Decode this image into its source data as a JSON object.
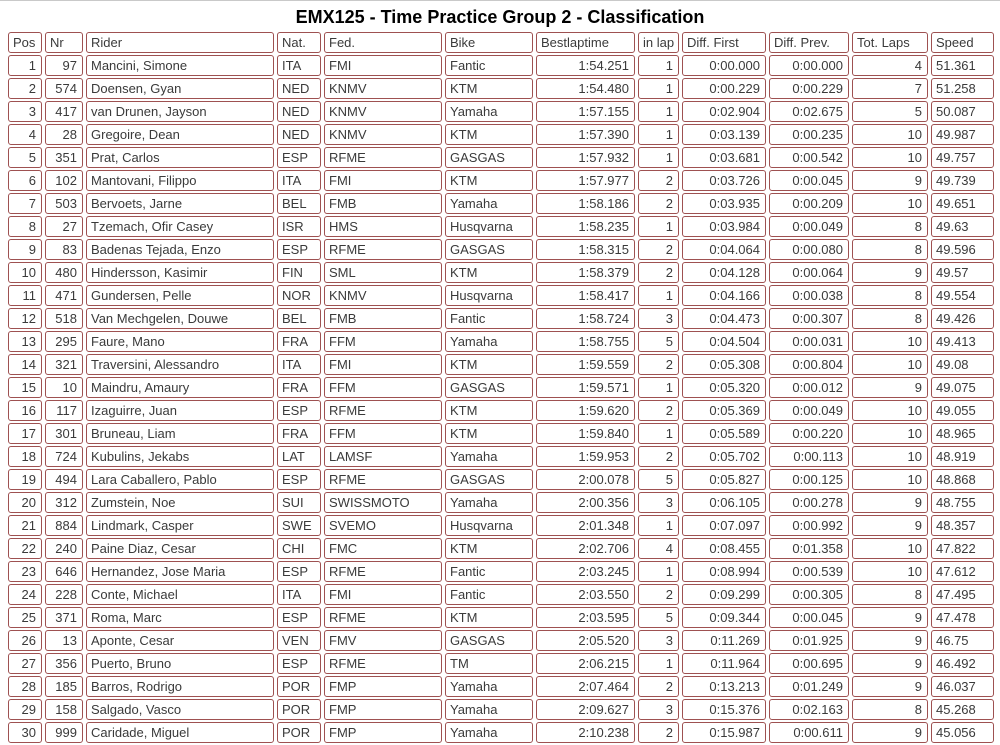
{
  "title": "EMX125 - Time Practice Group 2 - Classification",
  "colors": {
    "cell_border": "#9e5151",
    "text": "#3a3a3a",
    "title_text": "#000000",
    "background": "#ffffff"
  },
  "table": {
    "columns": [
      "Pos",
      "Nr",
      "Rider",
      "Nat.",
      "Fed.",
      "Bike",
      "Bestlaptime",
      "in lap",
      "Diff. First",
      "Diff. Prev.",
      "Tot. Laps",
      "Speed"
    ],
    "rows": [
      [
        "1",
        "97",
        "Mancini, Simone",
        "ITA",
        "FMI",
        "Fantic",
        "1:54.251",
        "1",
        "0:00.000",
        "0:00.000",
        "4",
        "51.361"
      ],
      [
        "2",
        "574",
        "Doensen, Gyan",
        "NED",
        "KNMV",
        "KTM",
        "1:54.480",
        "1",
        "0:00.229",
        "0:00.229",
        "7",
        "51.258"
      ],
      [
        "3",
        "417",
        "van Drunen, Jayson",
        "NED",
        "KNMV",
        "Yamaha",
        "1:57.155",
        "1",
        "0:02.904",
        "0:02.675",
        "5",
        "50.087"
      ],
      [
        "4",
        "28",
        "Gregoire, Dean",
        "NED",
        "KNMV",
        "KTM",
        "1:57.390",
        "1",
        "0:03.139",
        "0:00.235",
        "10",
        "49.987"
      ],
      [
        "5",
        "351",
        "Prat, Carlos",
        "ESP",
        "RFME",
        "GASGAS",
        "1:57.932",
        "1",
        "0:03.681",
        "0:00.542",
        "10",
        "49.757"
      ],
      [
        "6",
        "102",
        "Mantovani, Filippo",
        "ITA",
        "FMI",
        "KTM",
        "1:57.977",
        "2",
        "0:03.726",
        "0:00.045",
        "9",
        "49.739"
      ],
      [
        "7",
        "503",
        "Bervoets, Jarne",
        "BEL",
        "FMB",
        "Yamaha",
        "1:58.186",
        "2",
        "0:03.935",
        "0:00.209",
        "10",
        "49.651"
      ],
      [
        "8",
        "27",
        "Tzemach, Ofir Casey",
        "ISR",
        "HMS",
        "Husqvarna",
        "1:58.235",
        "1",
        "0:03.984",
        "0:00.049",
        "8",
        "49.63"
      ],
      [
        "9",
        "83",
        "Badenas Tejada, Enzo",
        "ESP",
        "RFME",
        "GASGAS",
        "1:58.315",
        "2",
        "0:04.064",
        "0:00.080",
        "8",
        "49.596"
      ],
      [
        "10",
        "480",
        "Hindersson, Kasimir",
        "FIN",
        "SML",
        "KTM",
        "1:58.379",
        "2",
        "0:04.128",
        "0:00.064",
        "9",
        "49.57"
      ],
      [
        "11",
        "471",
        "Gundersen, Pelle",
        "NOR",
        "KNMV",
        "Husqvarna",
        "1:58.417",
        "1",
        "0:04.166",
        "0:00.038",
        "8",
        "49.554"
      ],
      [
        "12",
        "518",
        "Van Mechgelen, Douwe",
        "BEL",
        "FMB",
        "Fantic",
        "1:58.724",
        "3",
        "0:04.473",
        "0:00.307",
        "8",
        "49.426"
      ],
      [
        "13",
        "295",
        "Faure, Mano",
        "FRA",
        "FFM",
        "Yamaha",
        "1:58.755",
        "5",
        "0:04.504",
        "0:00.031",
        "10",
        "49.413"
      ],
      [
        "14",
        "321",
        "Traversini, Alessandro",
        "ITA",
        "FMI",
        "KTM",
        "1:59.559",
        "2",
        "0:05.308",
        "0:00.804",
        "10",
        "49.08"
      ],
      [
        "15",
        "10",
        "Maindru, Amaury",
        "FRA",
        "FFM",
        "GASGAS",
        "1:59.571",
        "1",
        "0:05.320",
        "0:00.012",
        "9",
        "49.075"
      ],
      [
        "16",
        "117",
        "Izaguirre, Juan",
        "ESP",
        "RFME",
        "KTM",
        "1:59.620",
        "2",
        "0:05.369",
        "0:00.049",
        "10",
        "49.055"
      ],
      [
        "17",
        "301",
        "Bruneau, Liam",
        "FRA",
        "FFM",
        "KTM",
        "1:59.840",
        "1",
        "0:05.589",
        "0:00.220",
        "10",
        "48.965"
      ],
      [
        "18",
        "724",
        "Kubulins, Jekabs",
        "LAT",
        "LAMSF",
        "Yamaha",
        "1:59.953",
        "2",
        "0:05.702",
        "0:00.113",
        "10",
        "48.919"
      ],
      [
        "19",
        "494",
        "Lara Caballero, Pablo",
        "ESP",
        "RFME",
        "GASGAS",
        "2:00.078",
        "5",
        "0:05.827",
        "0:00.125",
        "10",
        "48.868"
      ],
      [
        "20",
        "312",
        "Zumstein, Noe",
        "SUI",
        "SWISSMOTO",
        "Yamaha",
        "2:00.356",
        "3",
        "0:06.105",
        "0:00.278",
        "9",
        "48.755"
      ],
      [
        "21",
        "884",
        "Lindmark, Casper",
        "SWE",
        "SVEMO",
        "Husqvarna",
        "2:01.348",
        "1",
        "0:07.097",
        "0:00.992",
        "9",
        "48.357"
      ],
      [
        "22",
        "240",
        "Paine Diaz, Cesar",
        "CHI",
        "FMC",
        "KTM",
        "2:02.706",
        "4",
        "0:08.455",
        "0:01.358",
        "10",
        "47.822"
      ],
      [
        "23",
        "646",
        "Hernandez, Jose Maria",
        "ESP",
        "RFME",
        "Fantic",
        "2:03.245",
        "1",
        "0:08.994",
        "0:00.539",
        "10",
        "47.612"
      ],
      [
        "24",
        "228",
        "Conte, Michael",
        "ITA",
        "FMI",
        "Fantic",
        "2:03.550",
        "2",
        "0:09.299",
        "0:00.305",
        "8",
        "47.495"
      ],
      [
        "25",
        "371",
        "Roma, Marc",
        "ESP",
        "RFME",
        "KTM",
        "2:03.595",
        "5",
        "0:09.344",
        "0:00.045",
        "9",
        "47.478"
      ],
      [
        "26",
        "13",
        "Aponte, Cesar",
        "VEN",
        "FMV",
        "GASGAS",
        "2:05.520",
        "3",
        "0:11.269",
        "0:01.925",
        "9",
        "46.75"
      ],
      [
        "27",
        "356",
        "Puerto, Bruno",
        "ESP",
        "RFME",
        "TM",
        "2:06.215",
        "1",
        "0:11.964",
        "0:00.695",
        "9",
        "46.492"
      ],
      [
        "28",
        "185",
        "Barros, Rodrigo",
        "POR",
        "FMP",
        "Yamaha",
        "2:07.464",
        "2",
        "0:13.213",
        "0:01.249",
        "9",
        "46.037"
      ],
      [
        "29",
        "158",
        "Salgado, Vasco",
        "POR",
        "FMP",
        "Yamaha",
        "2:09.627",
        "3",
        "0:15.376",
        "0:02.163",
        "8",
        "45.268"
      ],
      [
        "30",
        "999",
        "Caridade, Miguel",
        "POR",
        "FMP",
        "Yamaha",
        "2:10.238",
        "2",
        "0:15.987",
        "0:00.611",
        "9",
        "45.056"
      ]
    ]
  }
}
